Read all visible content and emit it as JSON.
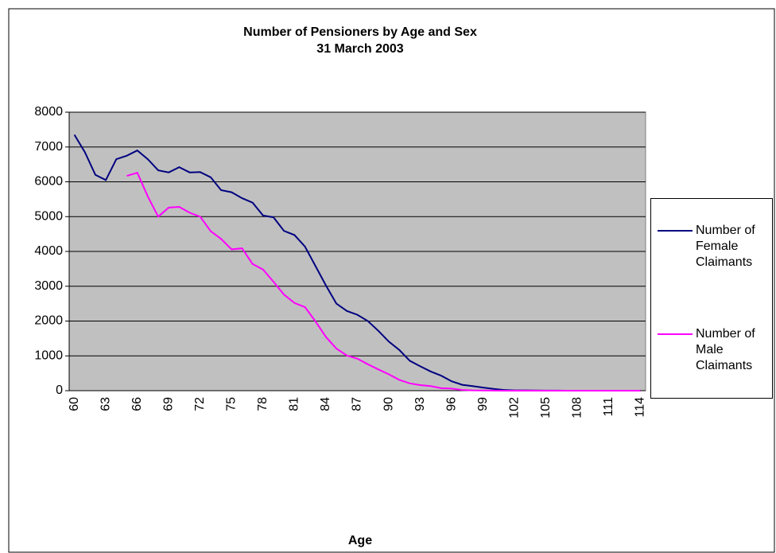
{
  "chart_data": {
    "type": "line",
    "title": "Number of Pensioners by Age and Sex",
    "subtitle": "31 March 2003",
    "x_label": "Age",
    "categories": [
      "60",
      null,
      null,
      "63",
      null,
      null,
      "66",
      null,
      null,
      "69",
      null,
      null,
      "72",
      null,
      null,
      "75",
      null,
      null,
      "78",
      null,
      null,
      "81",
      null,
      null,
      "84",
      null,
      null,
      "87",
      null,
      null,
      "90",
      null,
      null,
      "93",
      null,
      null,
      "96",
      null,
      null,
      "99",
      null,
      null,
      "102",
      null,
      null,
      "105",
      null,
      null,
      "108",
      null,
      null,
      "111",
      null,
      null,
      "114"
    ],
    "series": [
      {
        "name": "Number of Female Claimants",
        "color": "#000080",
        "values": [
          7350,
          6850,
          6200,
          6050,
          6650,
          6750,
          6900,
          6650,
          6330,
          6270,
          6420,
          6270,
          6280,
          6130,
          5760,
          5700,
          5530,
          5400,
          5030,
          4980,
          4590,
          4470,
          4140,
          3580,
          3020,
          2500,
          2290,
          2180,
          2000,
          1720,
          1410,
          1170,
          860,
          700,
          550,
          430,
          270,
          170,
          130,
          90,
          50,
          20,
          10,
          8,
          5,
          3,
          2,
          1,
          1,
          0,
          0,
          0,
          0,
          0,
          0
        ]
      },
      {
        "name": "Number of Male Claimants",
        "color": "#ff00ff",
        "values": [
          null,
          null,
          null,
          null,
          null,
          6170,
          6260,
          5580,
          5000,
          5260,
          5280,
          5110,
          5000,
          4580,
          4360,
          4060,
          4090,
          3640,
          3480,
          3130,
          2760,
          2520,
          2400,
          1990,
          1540,
          1210,
          1010,
          920,
          760,
          610,
          470,
          310,
          210,
          160,
          130,
          70,
          60,
          20,
          10,
          5,
          2,
          1,
          1,
          0,
          0,
          0,
          0,
          0,
          0,
          0,
          0,
          0,
          0,
          0,
          0
        ]
      }
    ],
    "ylim": [
      0,
      8000
    ],
    "yticks": [
      0,
      1000,
      2000,
      3000,
      4000,
      5000,
      6000,
      7000,
      8000
    ],
    "grid": true,
    "legend": "right"
  }
}
